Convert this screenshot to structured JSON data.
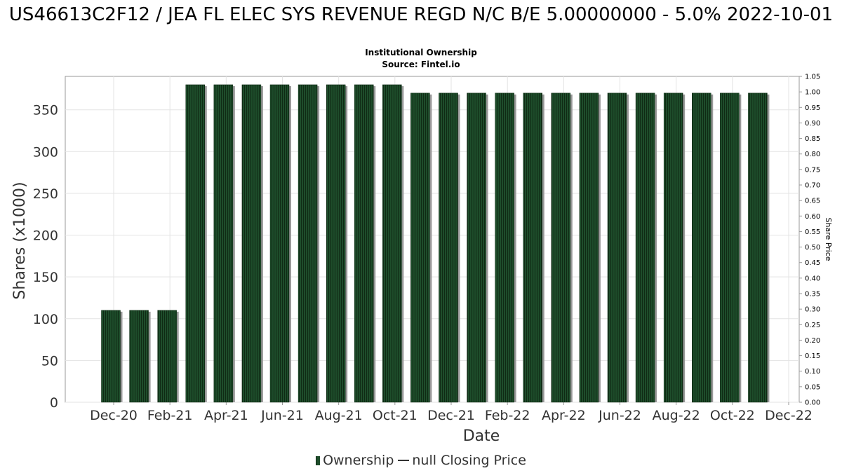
{
  "chart_data": {
    "type": "bar",
    "title": "US46613C2F12 / JEA FL ELEC SYS REVENUE REGD N/C B/E 5.00000000 - 5.0% 2022-10-01",
    "subtitle": "Institutional Ownership",
    "source": "Source: Fintel.io",
    "xlabel": "Date",
    "ylabel": "Shares (x1000)",
    "y2label": "Share Price",
    "ylim": [
      0,
      390
    ],
    "y2lim": [
      0,
      1.05
    ],
    "yticks": [
      0,
      50,
      100,
      150,
      200,
      250,
      300,
      350
    ],
    "y2ticks": [
      "0.00",
      "0.05",
      "0.10",
      "0.15",
      "0.20",
      "0.25",
      "0.30",
      "0.35",
      "0.40",
      "0.45",
      "0.50",
      "0.55",
      "0.60",
      "0.65",
      "0.70",
      "0.75",
      "0.80",
      "0.85",
      "0.90",
      "0.95",
      "1.00",
      "1.05"
    ],
    "xticks": [
      "Dec-20",
      "Feb-21",
      "Apr-21",
      "Jun-21",
      "Aug-21",
      "Oct-21",
      "Dec-21",
      "Feb-22",
      "Apr-22",
      "Jun-22",
      "Aug-22",
      "Oct-22",
      "Dec-22"
    ],
    "grid": true,
    "legend_position": "bottom",
    "series": [
      {
        "name": "Ownership",
        "type": "bar",
        "color": "#1e4d2b",
        "values": [
          110,
          110,
          110,
          380,
          380,
          380,
          380,
          380,
          380,
          380,
          380,
          370,
          370,
          370,
          370,
          370,
          370,
          370,
          370,
          370,
          370,
          370,
          370,
          370
        ]
      },
      {
        "name": "null Closing Price",
        "type": "line",
        "color": "#333333",
        "values": []
      }
    ]
  },
  "legend": {
    "ownership_label": "Ownership",
    "price_label": "null Closing Price"
  }
}
